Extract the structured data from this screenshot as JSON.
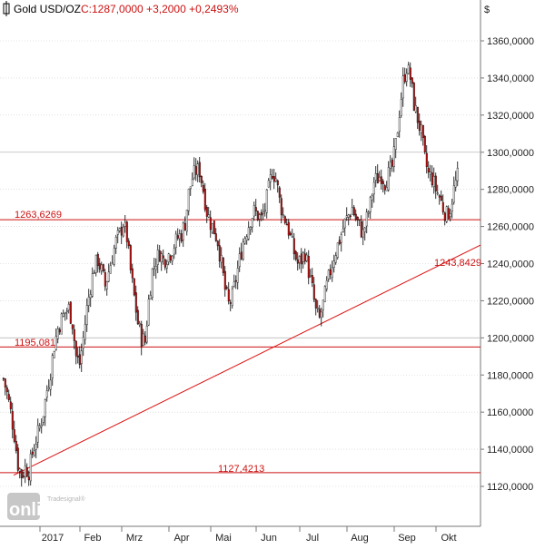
{
  "header": {
    "instrument": "Gold USD/OZ",
    "quote": "C:1287,0000 +3,2000 +0,2493%"
  },
  "axis": {
    "currency": "$",
    "y_ticks": [
      "1120,0000",
      "1140,0000",
      "1160,0000",
      "1180,0000",
      "1200,0000",
      "1220,0000",
      "1240,0000",
      "1260,0000",
      "1280,0000",
      "1300,0000",
      "1320,0000",
      "1340,0000",
      "1360,0000"
    ],
    "x_ticks": [
      "2017",
      "Feb",
      "Mrz",
      "Apr",
      "Mai",
      "Jun",
      "Jul",
      "Aug",
      "Sep",
      "Okt"
    ]
  },
  "levels": {
    "resistance_label": "1263,6269",
    "mid_label": "1195,081",
    "low_label": "1127,4213",
    "trendline_label": "1243,8429"
  },
  "logo": {
    "brand": "online",
    "sub": "Tradesignal®"
  },
  "colors": {
    "level_line": "#cc1111",
    "trend_line": "#dd1111",
    "up_candle": "#ffffff",
    "down_candle": "#cc1111",
    "candle_outline": "#000000",
    "grid": "#cccccc"
  },
  "chart_data": {
    "type": "candlestick",
    "title": "Gold USD/OZ",
    "ylabel": "$",
    "ylim": [
      1110,
      1378
    ],
    "grid": true,
    "x_categories": [
      "2017",
      "Feb",
      "Mrz",
      "Apr",
      "Mai",
      "Jun",
      "Jul",
      "Aug",
      "Sep",
      "Okt"
    ],
    "horizontal_levels": [
      {
        "value": 1263.6269,
        "label": "1263,6269"
      },
      {
        "value": 1195.081,
        "label": "1195,081"
      },
      {
        "value": 1127.4213,
        "label": "1127,4213"
      }
    ],
    "trendline": {
      "start": {
        "period": "Dez 2016",
        "value": 1126
      },
      "end": {
        "period": "Okt 2017",
        "value": 1250
      },
      "label": "1243,8429"
    },
    "last_close": 1287.0,
    "change": 3.2,
    "change_pct": 0.2493,
    "close_path": [
      [
        0,
        1178
      ],
      [
        4,
        1170
      ],
      [
        8,
        1160
      ],
      [
        12,
        1148
      ],
      [
        16,
        1132
      ],
      [
        20,
        1126
      ],
      [
        24,
        1130
      ],
      [
        28,
        1128
      ],
      [
        32,
        1138
      ],
      [
        36,
        1145
      ],
      [
        40,
        1152
      ],
      [
        44,
        1160
      ],
      [
        48,
        1172
      ],
      [
        52,
        1182
      ],
      [
        56,
        1196
      ],
      [
        60,
        1205
      ],
      [
        64,
        1210
      ],
      [
        68,
        1214
      ],
      [
        72,
        1216
      ],
      [
        76,
        1208
      ],
      [
        80,
        1190
      ],
      [
        84,
        1186
      ],
      [
        88,
        1200
      ],
      [
        92,
        1216
      ],
      [
        96,
        1228
      ],
      [
        100,
        1238
      ],
      [
        104,
        1242
      ],
      [
        108,
        1236
      ],
      [
        112,
        1228
      ],
      [
        116,
        1236
      ],
      [
        120,
        1244
      ],
      [
        124,
        1252
      ],
      [
        128,
        1256
      ],
      [
        132,
        1262
      ],
      [
        136,
        1254
      ],
      [
        140,
        1236
      ],
      [
        144,
        1222
      ],
      [
        148,
        1208
      ],
      [
        152,
        1200
      ],
      [
        156,
        1198
      ],
      [
        160,
        1220
      ],
      [
        164,
        1236
      ],
      [
        168,
        1242
      ],
      [
        172,
        1246
      ],
      [
        176,
        1242
      ],
      [
        180,
        1244
      ],
      [
        184,
        1246
      ],
      [
        188,
        1250
      ],
      [
        192,
        1254
      ],
      [
        196,
        1256
      ],
      [
        200,
        1262
      ],
      [
        204,
        1278
      ],
      [
        208,
        1286
      ],
      [
        212,
        1290
      ],
      [
        216,
        1290
      ],
      [
        220,
        1280
      ],
      [
        224,
        1268
      ],
      [
        228,
        1262
      ],
      [
        232,
        1258
      ],
      [
        236,
        1252
      ],
      [
        240,
        1240
      ],
      [
        244,
        1226
      ],
      [
        248,
        1218
      ],
      [
        252,
        1222
      ],
      [
        256,
        1232
      ],
      [
        260,
        1242
      ],
      [
        264,
        1252
      ],
      [
        268,
        1258
      ],
      [
        272,
        1264
      ],
      [
        276,
        1268
      ],
      [
        280,
        1266
      ],
      [
        284,
        1264
      ],
      [
        288,
        1270
      ],
      [
        292,
        1280
      ],
      [
        296,
        1290
      ],
      [
        300,
        1286
      ],
      [
        304,
        1274
      ],
      [
        308,
        1266
      ],
      [
        312,
        1262
      ],
      [
        316,
        1254
      ],
      [
        320,
        1246
      ],
      [
        324,
        1240
      ],
      [
        328,
        1242
      ],
      [
        332,
        1246
      ],
      [
        336,
        1236
      ],
      [
        340,
        1226
      ],
      [
        344,
        1214
      ],
      [
        348,
        1210
      ],
      [
        352,
        1218
      ],
      [
        356,
        1228
      ],
      [
        360,
        1236
      ],
      [
        364,
        1244
      ],
      [
        368,
        1250
      ],
      [
        372,
        1256
      ],
      [
        376,
        1262
      ],
      [
        380,
        1266
      ],
      [
        384,
        1270
      ],
      [
        388,
        1264
      ],
      [
        392,
        1260
      ],
      [
        396,
        1256
      ],
      [
        400,
        1264
      ],
      [
        404,
        1272
      ],
      [
        408,
        1284
      ],
      [
        412,
        1286
      ],
      [
        416,
        1288
      ],
      [
        420,
        1284
      ],
      [
        424,
        1288
      ],
      [
        428,
        1292
      ],
      [
        432,
        1304
      ],
      [
        436,
        1322
      ],
      [
        440,
        1338
      ],
      [
        444,
        1346
      ],
      [
        448,
        1340
      ],
      [
        452,
        1326
      ],
      [
        456,
        1318
      ],
      [
        460,
        1310
      ],
      [
        464,
        1296
      ],
      [
        468,
        1288
      ],
      [
        472,
        1286
      ],
      [
        476,
        1280
      ],
      [
        480,
        1276
      ],
      [
        484,
        1270
      ],
      [
        488,
        1266
      ],
      [
        492,
        1270
      ],
      [
        496,
        1280
      ],
      [
        500,
        1287
      ]
    ]
  }
}
